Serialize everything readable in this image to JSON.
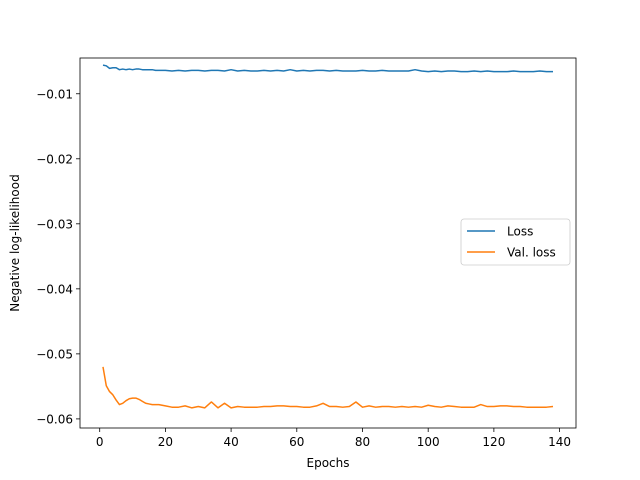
{
  "chart_data": {
    "type": "line",
    "title": "",
    "xlabel": "Epochs",
    "ylabel": "Negative log-likelihood",
    "xlim": [
      -6,
      145
    ],
    "ylim": [
      -0.0614,
      -0.0045
    ],
    "xticks": [
      0,
      20,
      40,
      60,
      80,
      100,
      120,
      140
    ],
    "xtick_labels": [
      "0",
      "20",
      "40",
      "60",
      "80",
      "100",
      "120",
      "140"
    ],
    "yticks": [
      -0.01,
      -0.02,
      -0.03,
      -0.04,
      -0.05,
      -0.06
    ],
    "ytick_labels": [
      "−0.01",
      "−0.02",
      "−0.03",
      "−0.04",
      "−0.05",
      "−0.06"
    ],
    "grid": false,
    "legend_position": "center-right",
    "series": [
      {
        "name": "Loss",
        "color": "#1f77b4",
        "x": [
          1,
          2,
          3,
          4,
          5,
          6,
          7,
          8,
          9,
          10,
          11,
          12,
          13,
          14,
          15,
          16,
          17,
          18,
          19,
          20,
          22,
          24,
          26,
          28,
          30,
          32,
          34,
          36,
          38,
          40,
          42,
          44,
          46,
          48,
          50,
          52,
          54,
          56,
          58,
          60,
          62,
          64,
          66,
          68,
          70,
          72,
          74,
          76,
          78,
          80,
          82,
          84,
          86,
          88,
          90,
          92,
          94,
          96,
          98,
          100,
          102,
          104,
          106,
          108,
          110,
          112,
          114,
          116,
          118,
          120,
          122,
          124,
          126,
          128,
          130,
          132,
          134,
          136,
          138
        ],
        "y": [
          -0.0056,
          -0.0057,
          -0.0061,
          -0.006,
          -0.006,
          -0.0063,
          -0.0062,
          -0.0063,
          -0.0062,
          -0.0063,
          -0.0062,
          -0.0062,
          -0.0063,
          -0.0063,
          -0.0063,
          -0.0063,
          -0.0064,
          -0.0064,
          -0.0064,
          -0.0064,
          -0.0065,
          -0.0064,
          -0.0065,
          -0.0064,
          -0.0064,
          -0.0065,
          -0.0064,
          -0.0064,
          -0.0065,
          -0.0063,
          -0.0065,
          -0.0064,
          -0.0065,
          -0.0065,
          -0.0064,
          -0.0065,
          -0.0064,
          -0.0065,
          -0.0063,
          -0.0065,
          -0.0064,
          -0.0065,
          -0.0064,
          -0.0064,
          -0.0065,
          -0.0064,
          -0.0065,
          -0.0065,
          -0.0065,
          -0.0064,
          -0.0065,
          -0.0065,
          -0.0064,
          -0.0065,
          -0.0065,
          -0.0065,
          -0.0065,
          -0.0063,
          -0.0065,
          -0.0066,
          -0.0065,
          -0.0066,
          -0.0065,
          -0.0065,
          -0.0066,
          -0.0066,
          -0.0065,
          -0.0066,
          -0.0065,
          -0.0066,
          -0.0066,
          -0.0066,
          -0.0065,
          -0.0066,
          -0.0066,
          -0.0066,
          -0.0065,
          -0.0066,
          -0.0066
        ]
      },
      {
        "name": "Val. loss",
        "color": "#ff7f0e",
        "x": [
          1,
          2,
          3,
          4,
          5,
          6,
          7,
          8,
          9,
          10,
          11,
          12,
          13,
          14,
          15,
          16,
          18,
          20,
          22,
          24,
          26,
          28,
          30,
          32,
          34,
          36,
          38,
          40,
          42,
          44,
          46,
          48,
          50,
          52,
          54,
          56,
          58,
          60,
          62,
          64,
          66,
          68,
          70,
          72,
          74,
          76,
          78,
          80,
          82,
          84,
          86,
          88,
          90,
          92,
          94,
          96,
          98,
          100,
          102,
          104,
          106,
          108,
          110,
          112,
          114,
          116,
          118,
          120,
          122,
          124,
          126,
          128,
          130,
          132,
          134,
          136,
          138
        ],
        "y": [
          -0.052,
          -0.0549,
          -0.0558,
          -0.0563,
          -0.0571,
          -0.0578,
          -0.0576,
          -0.0572,
          -0.0569,
          -0.0568,
          -0.0568,
          -0.057,
          -0.0573,
          -0.0576,
          -0.0577,
          -0.0578,
          -0.0578,
          -0.058,
          -0.0582,
          -0.0582,
          -0.058,
          -0.0583,
          -0.0581,
          -0.0583,
          -0.0574,
          -0.0583,
          -0.0576,
          -0.0583,
          -0.0581,
          -0.0582,
          -0.0582,
          -0.0582,
          -0.0581,
          -0.0581,
          -0.058,
          -0.058,
          -0.0581,
          -0.0581,
          -0.0582,
          -0.0582,
          -0.058,
          -0.0576,
          -0.0581,
          -0.0581,
          -0.0582,
          -0.0581,
          -0.0574,
          -0.0582,
          -0.058,
          -0.0582,
          -0.0581,
          -0.0581,
          -0.0582,
          -0.0581,
          -0.0582,
          -0.0581,
          -0.0582,
          -0.0579,
          -0.0581,
          -0.0582,
          -0.058,
          -0.0581,
          -0.0582,
          -0.0582,
          -0.0582,
          -0.0578,
          -0.0581,
          -0.0581,
          -0.058,
          -0.058,
          -0.0581,
          -0.0581,
          -0.0582,
          -0.0582,
          -0.0582,
          -0.0582,
          -0.0581
        ]
      }
    ]
  }
}
